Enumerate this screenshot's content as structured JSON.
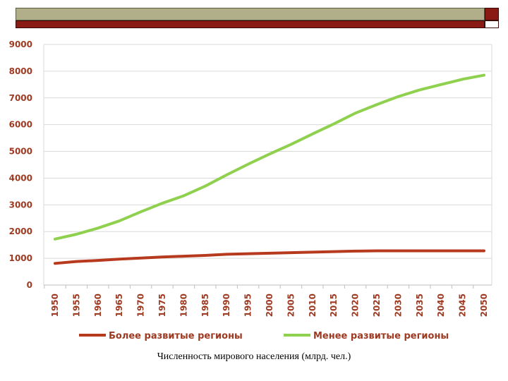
{
  "colors": {
    "header_olive": "#b1ae8a",
    "header_red": "#8a1a14",
    "axis_text": "#9e3a22",
    "grid": "#d9d9d9",
    "series_developed": "#b83a1e",
    "series_less_developed": "#8fd14f"
  },
  "caption": "Численность мирового населения (млрд. чел.)",
  "chart_data": {
    "type": "line",
    "x": [
      1950,
      1955,
      1960,
      1965,
      1970,
      1975,
      1980,
      1985,
      1990,
      1995,
      2000,
      2005,
      2010,
      2015,
      2020,
      2025,
      2030,
      2035,
      2040,
      2045,
      2050
    ],
    "x_ticks": [
      "1950",
      "1955",
      "1960",
      "1965",
      "1970",
      "1975",
      "1980",
      "1985",
      "1990",
      "1995",
      "2000",
      "2005",
      "2010",
      "2015",
      "2020",
      "2025",
      "2030",
      "2035",
      "2040",
      "2045",
      "2050"
    ],
    "ylim": [
      0,
      9000
    ],
    "y_ticks": [
      0,
      1000,
      2000,
      3000,
      4000,
      5000,
      6000,
      7000,
      8000,
      9000
    ],
    "grid": true,
    "legend_position": "bottom",
    "series": [
      {
        "name": "Более развитые регионы",
        "color": "#b83a1e",
        "values": [
          810,
          880,
          920,
          970,
          1010,
          1050,
          1080,
          1110,
          1150,
          1170,
          1190,
          1210,
          1230,
          1250,
          1270,
          1280,
          1280,
          1280,
          1280,
          1280,
          1280
        ]
      },
      {
        "name": "Менее развитые регионы",
        "color": "#8fd14f",
        "values": [
          1720,
          1900,
          2130,
          2400,
          2740,
          3060,
          3340,
          3700,
          4120,
          4520,
          4900,
          5260,
          5650,
          6030,
          6430,
          6750,
          7050,
          7300,
          7500,
          7700,
          7850
        ]
      }
    ]
  }
}
